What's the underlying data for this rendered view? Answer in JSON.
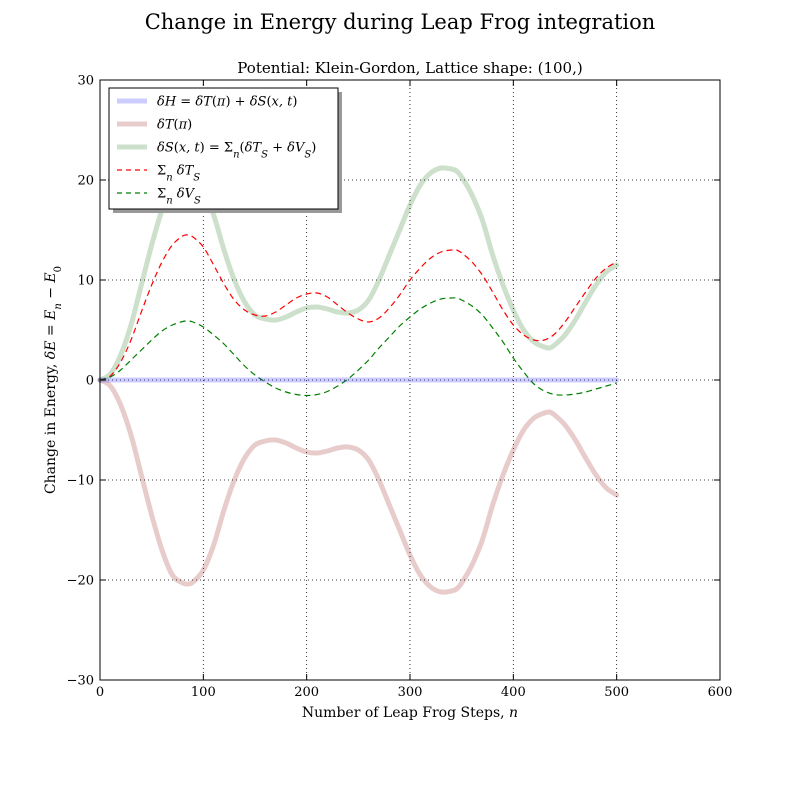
{
  "figure": {
    "suptitle": "Change in Energy during Leap Frog integration"
  },
  "chart_data": {
    "type": "line",
    "title": "Potential: Klein-Gordon, Lattice shape: (100,)",
    "xlabel": "Number of Leap Frog Steps, n",
    "ylabel": "Change in Energy, δE = E_n − E_0",
    "xlim": [
      0,
      600
    ],
    "ylim": [
      -30,
      30
    ],
    "xticks": [
      0,
      100,
      200,
      300,
      400,
      500,
      600
    ],
    "yticks": [
      -30,
      -20,
      -10,
      0,
      10,
      20,
      30
    ],
    "ytick_labels": [
      "−30",
      "−20",
      "−10",
      "0",
      "10",
      "20",
      "30"
    ],
    "grid": true,
    "legend_position": "top-left",
    "series": [
      {
        "name": "δH = δT(π) + δS(x,t)",
        "color": "#0000ff",
        "opacity": 0.2,
        "style": "solid-thick",
        "x": [
          0,
          100,
          200,
          300,
          400,
          500
        ],
        "y": [
          0,
          0,
          0,
          0,
          0,
          0
        ]
      },
      {
        "name": "δT(π)",
        "color": "#8b0000",
        "opacity": 0.2,
        "style": "solid-thick",
        "x": [
          0,
          10,
          20,
          30,
          40,
          50,
          60,
          70,
          80,
          85,
          90,
          100,
          110,
          120,
          130,
          140,
          150,
          160,
          170,
          180,
          190,
          200,
          210,
          220,
          230,
          240,
          250,
          260,
          270,
          280,
          290,
          300,
          310,
          320,
          330,
          340,
          345,
          350,
          360,
          370,
          380,
          390,
          400,
          410,
          420,
          430,
          435,
          440,
          450,
          460,
          470,
          480,
          490,
          500
        ],
        "y": [
          0,
          -0.6,
          -2.5,
          -5.5,
          -9.5,
          -13.5,
          -17,
          -19.5,
          -20.3,
          -20.4,
          -20.2,
          -19,
          -16.5,
          -13,
          -10,
          -7.8,
          -6.5,
          -6.1,
          -6.0,
          -6.3,
          -6.8,
          -7.2,
          -7.3,
          -7.1,
          -6.8,
          -6.7,
          -7.0,
          -8,
          -10,
          -12.5,
          -15,
          -17.5,
          -19.5,
          -20.7,
          -21.2,
          -21.1,
          -20.9,
          -20.3,
          -18.5,
          -16,
          -12.5,
          -9.5,
          -7,
          -5,
          -3.8,
          -3.3,
          -3.2,
          -3.5,
          -4.5,
          -6,
          -7.8,
          -9.5,
          -10.8,
          -11.5
        ]
      },
      {
        "name": "δS(x,t) = Σ_n(δT_S + δV_S)",
        "color": "#006400",
        "opacity": 0.2,
        "style": "solid-thick",
        "x": [
          0,
          10,
          20,
          30,
          40,
          50,
          60,
          70,
          80,
          85,
          90,
          100,
          110,
          120,
          130,
          140,
          150,
          160,
          170,
          180,
          190,
          200,
          210,
          220,
          230,
          240,
          250,
          260,
          270,
          280,
          290,
          300,
          310,
          320,
          330,
          340,
          345,
          350,
          360,
          370,
          380,
          390,
          400,
          410,
          420,
          430,
          435,
          440,
          450,
          460,
          470,
          480,
          490,
          500
        ],
        "y": [
          0,
          0.6,
          2.5,
          5.5,
          9.5,
          13.5,
          17,
          19.5,
          20.3,
          20.4,
          20.2,
          19,
          16.5,
          13,
          10,
          7.8,
          6.5,
          6.1,
          6.0,
          6.3,
          6.8,
          7.2,
          7.3,
          7.1,
          6.8,
          6.7,
          7.0,
          8,
          10,
          12.5,
          15,
          17.5,
          19.5,
          20.7,
          21.2,
          21.1,
          20.9,
          20.3,
          18.5,
          16,
          12.5,
          9.5,
          7,
          5,
          3.8,
          3.3,
          3.2,
          3.5,
          4.5,
          6,
          7.8,
          9.5,
          10.8,
          11.5
        ]
      },
      {
        "name": "Σ_n δT_S",
        "color": "#ff0000",
        "opacity": 1,
        "style": "dashed",
        "x": [
          0,
          10,
          20,
          30,
          40,
          50,
          60,
          70,
          80,
          85,
          90,
          100,
          110,
          120,
          130,
          140,
          150,
          160,
          170,
          180,
          190,
          200,
          210,
          220,
          230,
          240,
          250,
          260,
          270,
          280,
          290,
          300,
          310,
          320,
          330,
          340,
          345,
          350,
          360,
          370,
          380,
          390,
          400,
          410,
          420,
          430,
          440,
          450,
          460,
          470,
          480,
          490,
          500
        ],
        "y": [
          0,
          0.4,
          1.8,
          4,
          6.8,
          9.5,
          11.8,
          13.5,
          14.4,
          14.5,
          14.3,
          13.3,
          11.5,
          9.6,
          8,
          7,
          6.5,
          6.4,
          6.8,
          7.5,
          8.2,
          8.6,
          8.7,
          8.3,
          7.5,
          6.7,
          6.1,
          5.8,
          6.2,
          7.2,
          8.5,
          10,
          11.2,
          12.2,
          12.8,
          13.0,
          13.0,
          12.7,
          11.8,
          10.5,
          8.8,
          7,
          5.5,
          4.5,
          4.0,
          4.0,
          4.6,
          5.8,
          7.3,
          8.8,
          10.2,
          11.2,
          11.8
        ]
      },
      {
        "name": "Σ_n δV_S",
        "color": "#008000",
        "opacity": 1,
        "style": "dashed",
        "x": [
          0,
          10,
          20,
          30,
          40,
          50,
          60,
          70,
          80,
          85,
          90,
          100,
          110,
          120,
          130,
          140,
          150,
          160,
          170,
          180,
          190,
          200,
          210,
          220,
          230,
          240,
          250,
          260,
          270,
          280,
          290,
          300,
          310,
          320,
          330,
          340,
          345,
          350,
          360,
          370,
          380,
          390,
          400,
          410,
          420,
          430,
          440,
          450,
          460,
          470,
          480,
          490,
          500
        ],
        "y": [
          0,
          0.3,
          1.0,
          2.0,
          3.0,
          4.0,
          4.9,
          5.5,
          5.85,
          5.9,
          5.8,
          5.3,
          4.5,
          3.6,
          2.5,
          1.4,
          0.5,
          -0.2,
          -0.8,
          -1.2,
          -1.45,
          -1.55,
          -1.45,
          -1.15,
          -0.6,
          0.1,
          1.0,
          2.0,
          3.2,
          4.3,
          5.4,
          6.3,
          7.1,
          7.7,
          8.1,
          8.2,
          8.2,
          8.0,
          7.4,
          6.5,
          5.2,
          3.8,
          2.2,
          0.8,
          -0.4,
          -1.1,
          -1.45,
          -1.5,
          -1.4,
          -1.2,
          -0.9,
          -0.6,
          -0.3
        ]
      }
    ]
  }
}
